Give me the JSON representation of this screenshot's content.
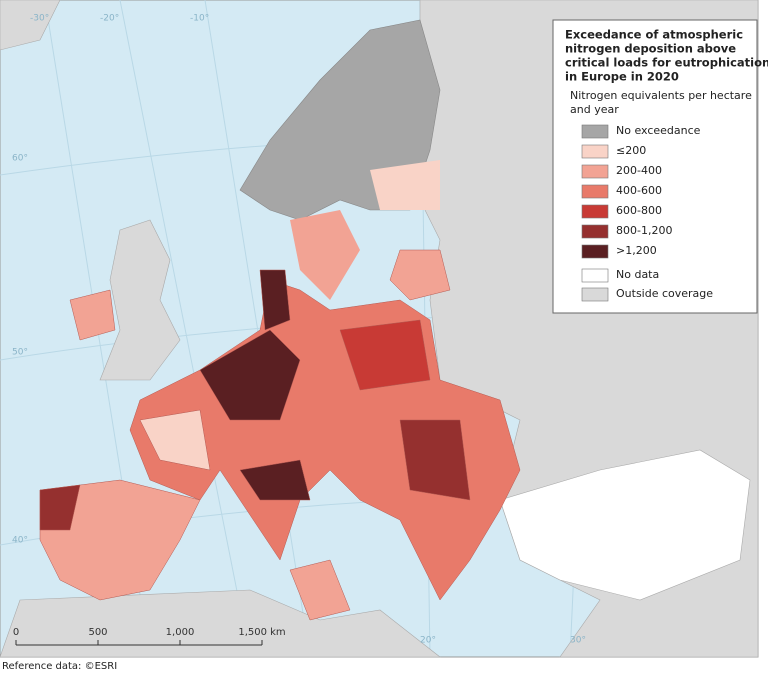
{
  "map": {
    "title_lines": [
      "Exceedance of atmospheric",
      "nitrogen deposition above",
      "critical loads for eutrophication",
      "in Europe in 2020"
    ],
    "legend": {
      "subtitle_lines": [
        "Nitrogen equivalents per hectare",
        "and year"
      ],
      "items": [
        {
          "label": "No exceedance",
          "color": "#a6a6a6"
        },
        {
          "label": "≤200",
          "color": "#f9d3c7"
        },
        {
          "label": "200-400",
          "color": "#f2a394"
        },
        {
          "label": "400-600",
          "color": "#e87a6a"
        },
        {
          "label": "600-800",
          "color": "#c83a35"
        },
        {
          "label": "800-1,200",
          "color": "#95302f"
        },
        {
          "label": ">1,200",
          "color": "#5a1f22"
        },
        {
          "label": "No data",
          "color": "#ffffff"
        },
        {
          "label": "Outside coverage",
          "color": "#d9d9d9"
        }
      ]
    },
    "graticule_labels": [
      "-30°",
      "-20°",
      "-10°",
      "60°",
      "50°",
      "40°",
      "20°",
      "30°"
    ],
    "scale_bar": [
      "0",
      "500",
      "1,000",
      "1,500 km"
    ],
    "footer": "Reference data: ©ESRI"
  }
}
